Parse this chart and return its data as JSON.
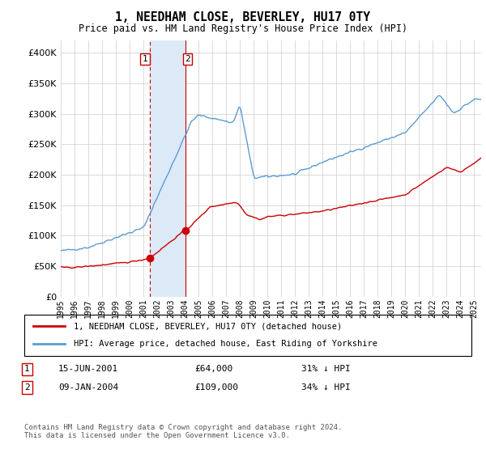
{
  "title": "1, NEEDHAM CLOSE, BEVERLEY, HU17 0TY",
  "subtitle": "Price paid vs. HM Land Registry's House Price Index (HPI)",
  "legend_line1": "1, NEEDHAM CLOSE, BEVERLEY, HU17 0TY (detached house)",
  "legend_line2": "HPI: Average price, detached house, East Riding of Yorkshire",
  "footer": "Contains HM Land Registry data © Crown copyright and database right 2024.\nThis data is licensed under the Open Government Licence v3.0.",
  "transaction1_date": "15-JUN-2001",
  "transaction1_price": "£64,000",
  "transaction1_hpi": "31% ↓ HPI",
  "transaction1_year": 2001.46,
  "transaction1_value": 64000,
  "transaction2_date": "09-JAN-2004",
  "transaction2_price": "£109,000",
  "transaction2_hpi": "34% ↓ HPI",
  "transaction2_year": 2004.03,
  "transaction2_value": 109000,
  "hpi_color": "#5b9bd5",
  "price_color": "#cc0000",
  "highlight_color": "#dce9f7",
  "dashed_line_color": "#cc0000",
  "ylim": [
    0,
    420000
  ],
  "yticks": [
    0,
    50000,
    100000,
    150000,
    200000,
    250000,
    300000,
    350000,
    400000
  ],
  "xlim_left": 1995,
  "xlim_right": 2025.5,
  "background_color": "#ffffff",
  "grid_color": "#cccccc"
}
